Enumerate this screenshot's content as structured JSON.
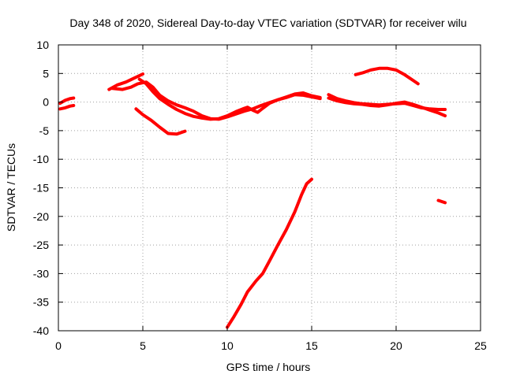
{
  "chart_data": {
    "type": "scatter",
    "title": "Day 348 of 2020, Sidereal Day-to-day VTEC variation (SDTVAR) for receiver wilu",
    "xlabel": "GPS time / hours",
    "ylabel": "SDTVAR / TECUs",
    "xlim": [
      0,
      25
    ],
    "ylim": [
      -40,
      10
    ],
    "xticks": [
      0,
      5,
      10,
      15,
      20,
      25
    ],
    "yticks": [
      -40,
      -35,
      -30,
      -25,
      -20,
      -15,
      -10,
      -5,
      0,
      5,
      10
    ],
    "xtick_labels": [
      "0",
      "5",
      "10",
      "15",
      "20",
      "25"
    ],
    "ytick_labels": [
      "-40",
      "-35",
      "-30",
      "-25",
      "-20",
      "-15",
      "-10",
      "-5",
      "0",
      "5",
      "10"
    ],
    "grid": true,
    "color": "#ff0000",
    "series": [
      {
        "name": "arc-a",
        "points": [
          [
            0.1,
            -1.2
          ],
          [
            0.4,
            -1.0
          ],
          [
            0.7,
            -0.7
          ],
          [
            0.9,
            -0.6
          ]
        ]
      },
      {
        "name": "arc-b",
        "points": [
          [
            0.1,
            -0.2
          ],
          [
            0.4,
            0.3
          ],
          [
            0.7,
            0.6
          ],
          [
            0.9,
            0.7
          ]
        ]
      },
      {
        "name": "arc-c",
        "points": [
          [
            3.0,
            2.2
          ],
          [
            3.5,
            3.0
          ],
          [
            4.0,
            3.5
          ],
          [
            4.5,
            4.2
          ],
          [
            5.0,
            4.9
          ]
        ]
      },
      {
        "name": "arc-d",
        "points": [
          [
            3.2,
            2.4
          ],
          [
            3.8,
            2.2
          ],
          [
            4.3,
            2.6
          ],
          [
            4.7,
            3.2
          ],
          [
            5.2,
            3.5
          ],
          [
            5.6,
            2.6
          ],
          [
            6.0,
            1.2
          ],
          [
            6.5,
            0.2
          ],
          [
            7.0,
            -0.5
          ],
          [
            7.5,
            -1.0
          ],
          [
            8.0,
            -1.6
          ],
          [
            8.5,
            -2.4
          ],
          [
            9.0,
            -2.9
          ],
          [
            9.5,
            -3.0
          ],
          [
            10.0,
            -2.6
          ],
          [
            10.5,
            -2.1
          ],
          [
            11.0,
            -1.6
          ],
          [
            11.5,
            -1.2
          ],
          [
            12.0,
            -0.6
          ],
          [
            12.5,
            -0.1
          ],
          [
            13.0,
            0.4
          ],
          [
            13.5,
            0.8
          ],
          [
            14.0,
            1.3
          ],
          [
            14.5,
            1.2
          ],
          [
            15.0,
            0.9
          ],
          [
            15.5,
            0.6
          ]
        ]
      },
      {
        "name": "arc-e",
        "points": [
          [
            4.8,
            4.0
          ],
          [
            5.2,
            3.2
          ],
          [
            5.6,
            1.8
          ],
          [
            6.0,
            0.6
          ],
          [
            6.5,
            -0.4
          ],
          [
            7.0,
            -1.3
          ],
          [
            7.5,
            -2.0
          ],
          [
            8.0,
            -2.5
          ],
          [
            8.5,
            -2.8
          ],
          [
            9.0,
            -3.0
          ],
          [
            9.5,
            -2.9
          ],
          [
            10.0,
            -2.4
          ],
          [
            10.5,
            -1.7
          ],
          [
            11.0,
            -1.1
          ],
          [
            11.2,
            -0.9
          ],
          [
            11.5,
            -1.4
          ],
          [
            11.8,
            -1.8
          ],
          [
            12.1,
            -1.1
          ],
          [
            12.5,
            -0.2
          ],
          [
            13.0,
            0.4
          ],
          [
            13.5,
            0.9
          ],
          [
            14.0,
            1.4
          ],
          [
            14.5,
            1.6
          ],
          [
            15.0,
            1.1
          ],
          [
            15.5,
            0.8
          ]
        ]
      },
      {
        "name": "arc-f",
        "points": [
          [
            4.6,
            -1.2
          ],
          [
            5.0,
            -2.2
          ],
          [
            5.5,
            -3.2
          ],
          [
            6.0,
            -4.4
          ],
          [
            6.5,
            -5.5
          ],
          [
            7.0,
            -5.6
          ],
          [
            7.5,
            -5.1
          ]
        ]
      },
      {
        "name": "arc-g",
        "points": [
          [
            10.0,
            -39.4
          ],
          [
            10.4,
            -37.5
          ],
          [
            10.8,
            -35.5
          ],
          [
            11.2,
            -33.2
          ],
          [
            11.7,
            -31.3
          ],
          [
            12.1,
            -30.0
          ],
          [
            12.5,
            -27.8
          ],
          [
            13.0,
            -25.0
          ],
          [
            13.5,
            -22.3
          ],
          [
            14.0,
            -19.2
          ],
          [
            14.4,
            -16.2
          ],
          [
            14.7,
            -14.3
          ],
          [
            15.0,
            -13.5
          ]
        ]
      },
      {
        "name": "arc-h",
        "points": [
          [
            16.0,
            1.3
          ],
          [
            16.5,
            0.6
          ],
          [
            17.0,
            0.2
          ],
          [
            17.5,
            -0.1
          ],
          [
            18.0,
            -0.3
          ],
          [
            18.5,
            -0.4
          ],
          [
            19.0,
            -0.5
          ],
          [
            19.5,
            -0.4
          ],
          [
            20.0,
            -0.3
          ],
          [
            20.5,
            -0.2
          ],
          [
            21.0,
            -0.6
          ],
          [
            21.5,
            -1.0
          ],
          [
            22.0,
            -1.2
          ],
          [
            22.5,
            -1.3
          ],
          [
            22.9,
            -1.3
          ]
        ]
      },
      {
        "name": "arc-i",
        "points": [
          [
            16.0,
            0.7
          ],
          [
            16.5,
            0.2
          ],
          [
            17.0,
            -0.1
          ],
          [
            17.5,
            -0.3
          ],
          [
            18.0,
            -0.4
          ],
          [
            18.5,
            -0.6
          ],
          [
            19.0,
            -0.7
          ],
          [
            19.5,
            -0.5
          ],
          [
            20.0,
            -0.2
          ],
          [
            20.5,
            0.0
          ],
          [
            21.0,
            -0.4
          ],
          [
            21.5,
            -0.9
          ],
          [
            22.0,
            -1.4
          ],
          [
            22.5,
            -1.9
          ],
          [
            22.9,
            -2.4
          ]
        ]
      },
      {
        "name": "arc-j",
        "points": [
          [
            17.6,
            4.8
          ],
          [
            18.0,
            5.1
          ],
          [
            18.5,
            5.6
          ],
          [
            19.0,
            5.9
          ],
          [
            19.5,
            5.9
          ],
          [
            20.0,
            5.6
          ],
          [
            20.5,
            4.8
          ],
          [
            21.0,
            3.8
          ],
          [
            21.3,
            3.2
          ]
        ]
      },
      {
        "name": "arc-k",
        "points": [
          [
            22.5,
            -17.2
          ],
          [
            22.9,
            -17.6
          ]
        ]
      }
    ]
  }
}
